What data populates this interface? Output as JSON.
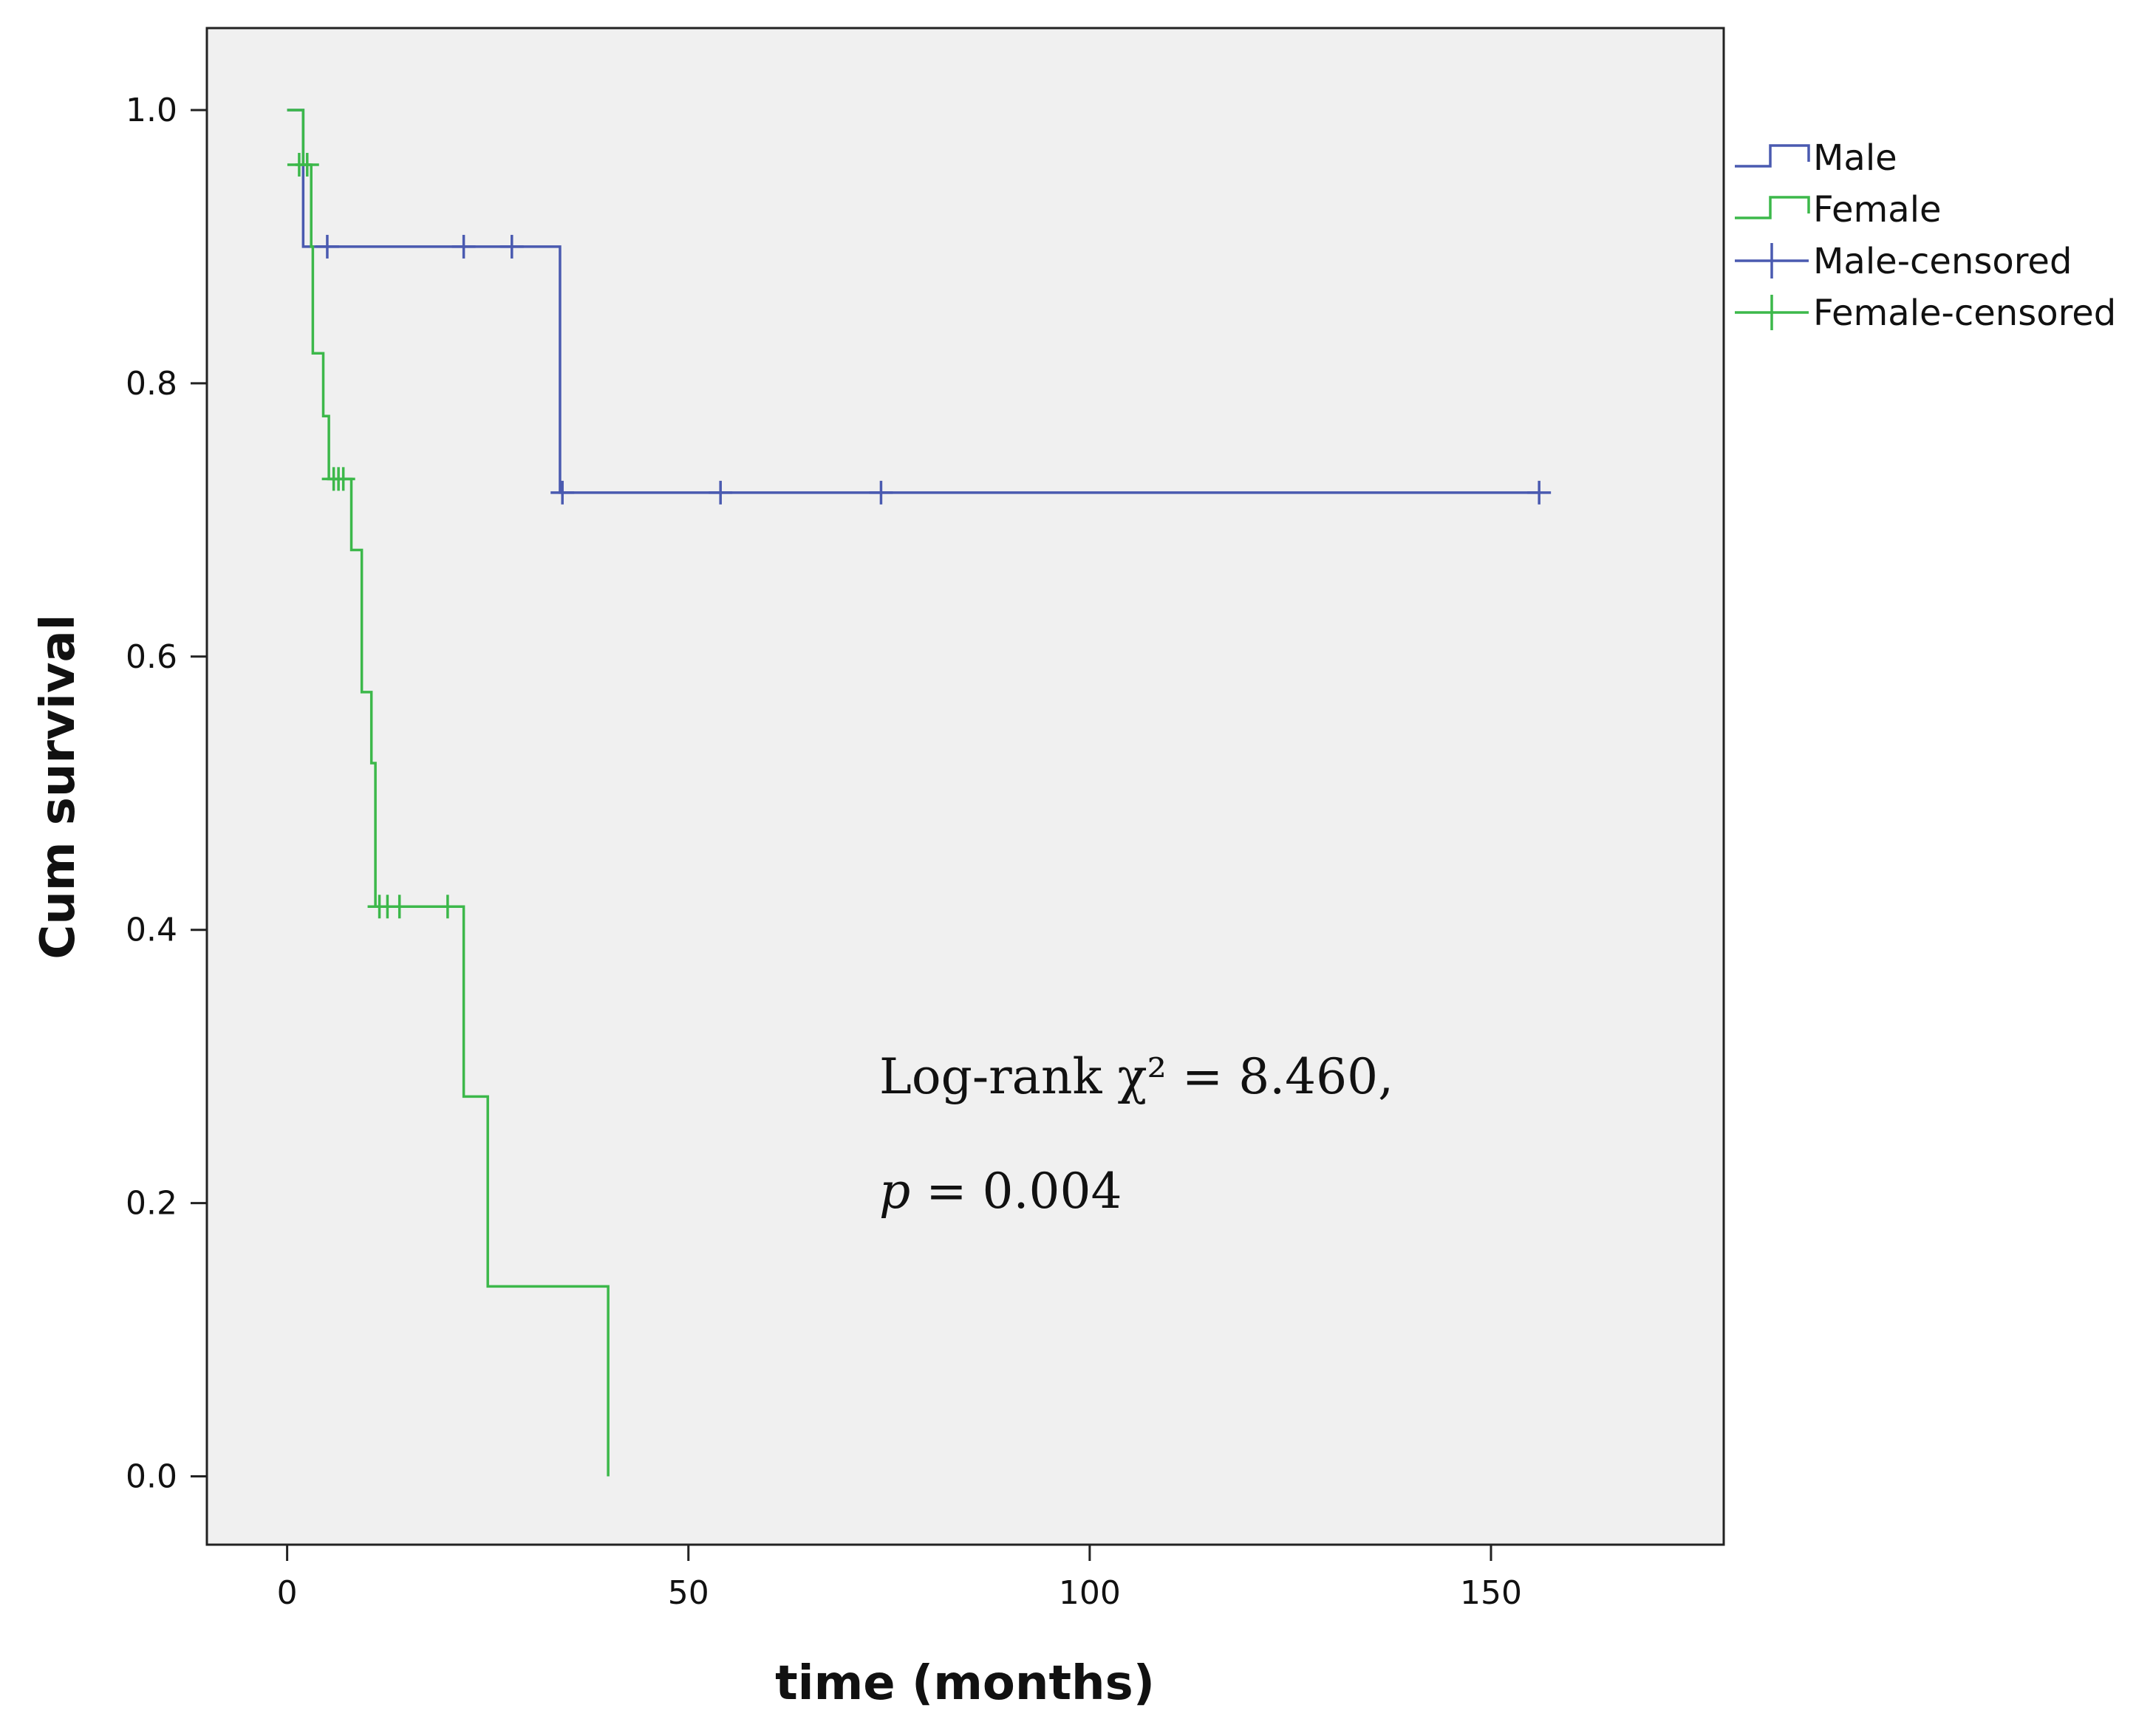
{
  "chart_data": {
    "type": "line",
    "title": "",
    "xlabel": "time (months)",
    "ylabel": "Cum survival",
    "xlim": [
      -10,
      179
    ],
    "ylim": [
      -0.05,
      1.06
    ],
    "xticks": [
      0,
      50,
      100,
      150
    ],
    "yticks": [
      0.0,
      0.2,
      0.4,
      0.6,
      0.8,
      1.0
    ],
    "xtick_labels": [
      "0",
      "50",
      "100",
      "150"
    ],
    "ytick_labels": [
      "0.0",
      "0.2",
      "0.4",
      "0.6",
      "0.8",
      "1.0"
    ],
    "grid": false,
    "legend_position": "right",
    "colors": {
      "male": "#4a5ab0",
      "female": "#3cb84a",
      "plot_bg": "#f0f0f0"
    },
    "legend": [
      {
        "label": "Male",
        "kind": "step",
        "series": "male"
      },
      {
        "label": "Female",
        "kind": "step",
        "series": "female"
      },
      {
        "label": "Male-censored",
        "kind": "censor",
        "series": "male"
      },
      {
        "label": "Female-censored",
        "kind": "censor",
        "series": "female"
      }
    ],
    "series": [
      {
        "name": "Male",
        "key": "male",
        "steps": [
          [
            0,
            1.0
          ],
          [
            2,
            0.9
          ],
          [
            34,
            0.72
          ],
          [
            156,
            0.72
          ]
        ],
        "censored": [
          [
            5,
            0.9
          ],
          [
            22,
            0.9
          ],
          [
            28,
            0.9
          ],
          [
            34.3,
            0.72
          ],
          [
            54,
            0.72
          ],
          [
            74,
            0.72
          ],
          [
            156,
            0.72
          ]
        ]
      },
      {
        "name": "Female",
        "key": "female",
        "steps": [
          [
            0,
            1.0
          ],
          [
            2,
            0.96
          ],
          [
            3,
            0.9
          ],
          [
            3.2,
            0.822
          ],
          [
            4.5,
            0.776
          ],
          [
            5.2,
            0.73
          ],
          [
            8,
            0.678
          ],
          [
            9.3,
            0.574
          ],
          [
            10.5,
            0.522
          ],
          [
            11,
            0.417
          ],
          [
            22,
            0.278
          ],
          [
            25,
            0.139
          ],
          [
            40,
            0.0
          ]
        ],
        "censored": [
          [
            1.5,
            0.96
          ],
          [
            2.5,
            0.96
          ],
          [
            5.8,
            0.73
          ],
          [
            6.4,
            0.73
          ],
          [
            7.0,
            0.73
          ],
          [
            11.5,
            0.417
          ],
          [
            12.5,
            0.417
          ],
          [
            14,
            0.417
          ],
          [
            20,
            0.417
          ]
        ]
      }
    ],
    "annotations": {
      "line1": "Log-rank χ² = 8.460,",
      "line2_italic": "p",
      "line2_rest": " = 0.004"
    }
  }
}
